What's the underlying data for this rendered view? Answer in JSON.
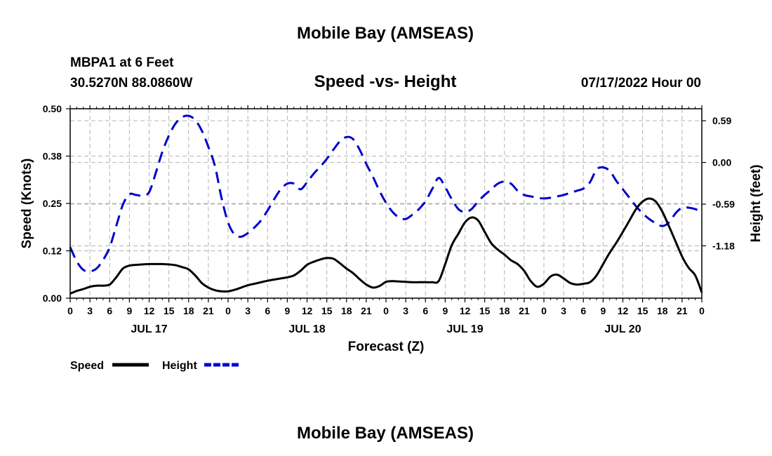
{
  "header": {
    "title": "Mobile Bay (AMSEAS)",
    "station": "MBPA1 at 6 Feet",
    "coords": "30.5270N  88.0860W",
    "datetime": "07/17/2022 Hour 00"
  },
  "footer": {
    "title": "Mobile Bay (AMSEAS)"
  },
  "chart_data": {
    "type": "line",
    "title": "Speed -vs- Height",
    "xlabel": "Forecast (Z)",
    "ylabel": "Speed (Knots)",
    "y2label": "Height (feet)",
    "x_unit": "hours since 07/17 00Z",
    "xlim": [
      0,
      96
    ],
    "ylim": [
      0,
      0.5
    ],
    "y2lim": [
      -1.92,
      0.76
    ],
    "grid": true,
    "x_tick_values": [
      0,
      3,
      6,
      9,
      12,
      15,
      18,
      21,
      24,
      27,
      30,
      33,
      36,
      39,
      42,
      45,
      48,
      51,
      54,
      57,
      60,
      63,
      66,
      69,
      72,
      75,
      78,
      81,
      84,
      87,
      90,
      93,
      96
    ],
    "x_tick_labels": [
      "0",
      "3",
      "6",
      "9",
      "12",
      "15",
      "18",
      "21",
      "0",
      "3",
      "6",
      "9",
      "12",
      "15",
      "18",
      "21",
      "0",
      "3",
      "6",
      "9",
      "12",
      "15",
      "18",
      "21",
      "0",
      "3",
      "6",
      "9",
      "12",
      "15",
      "18",
      "21",
      "0"
    ],
    "day_labels": [
      {
        "label": "JUL 17",
        "x": 12
      },
      {
        "label": "JUL 18",
        "x": 36
      },
      {
        "label": "JUL 19",
        "x": 60
      },
      {
        "label": "JUL 20",
        "x": 84
      }
    ],
    "y_ticks": [
      0.0,
      0.125,
      0.25,
      0.375,
      0.5
    ],
    "y_tick_labels": [
      "0.00",
      "0.12",
      "0.25",
      "0.38",
      "0.50"
    ],
    "y2_ticks": [
      -1.18,
      -0.59,
      0.0,
      0.59
    ],
    "y2_tick_labels": [
      "-1.18",
      "-0.59",
      "0.00",
      "0.59"
    ],
    "legend": {
      "position": "bottom-left"
    },
    "series": [
      {
        "name": "Speed",
        "axis": "left",
        "color": "#000000",
        "style": "solid",
        "x": [
          0,
          1,
          2,
          3,
          4,
          5,
          6,
          7,
          8,
          9,
          10,
          11,
          12,
          13,
          14,
          15,
          16,
          17,
          18,
          19,
          20,
          21,
          22,
          23,
          24,
          25,
          26,
          27,
          28,
          29,
          30,
          31,
          32,
          33,
          34,
          35,
          36,
          37,
          38,
          39,
          40,
          41,
          42,
          43,
          44,
          45,
          46,
          47,
          48,
          49,
          50,
          51,
          52,
          53,
          54,
          55,
          56,
          57,
          58,
          59,
          60,
          61,
          62,
          63,
          64,
          65,
          66,
          67,
          68,
          69,
          70,
          71,
          72,
          73,
          74,
          75,
          76,
          77,
          78,
          79,
          80,
          81,
          82,
          83,
          84,
          85,
          86,
          87,
          88,
          89,
          90,
          91,
          92,
          93,
          94,
          95,
          96
        ],
        "values": [
          0.012,
          0.019,
          0.024,
          0.03,
          0.033,
          0.033,
          0.036,
          0.055,
          0.078,
          0.086,
          0.088,
          0.089,
          0.09,
          0.09,
          0.09,
          0.089,
          0.087,
          0.082,
          0.076,
          0.06,
          0.04,
          0.028,
          0.021,
          0.018,
          0.018,
          0.022,
          0.028,
          0.034,
          0.038,
          0.042,
          0.046,
          0.049,
          0.052,
          0.055,
          0.06,
          0.072,
          0.088,
          0.096,
          0.102,
          0.106,
          0.104,
          0.092,
          0.078,
          0.066,
          0.05,
          0.036,
          0.028,
          0.032,
          0.043,
          0.045,
          0.044,
          0.043,
          0.042,
          0.042,
          0.042,
          0.042,
          0.045,
          0.09,
          0.14,
          0.17,
          0.2,
          0.213,
          0.205,
          0.175,
          0.145,
          0.128,
          0.115,
          0.1,
          0.09,
          0.072,
          0.045,
          0.03,
          0.038,
          0.057,
          0.062,
          0.052,
          0.04,
          0.036,
          0.038,
          0.042,
          0.06,
          0.09,
          0.12,
          0.146,
          0.175,
          0.205,
          0.235,
          0.255,
          0.263,
          0.255,
          0.228,
          0.19,
          0.15,
          0.11,
          0.08,
          0.06,
          0.015
        ]
      },
      {
        "name": "Height",
        "axis": "right",
        "color": "#0000cc",
        "style": "dashed",
        "x": [
          0,
          1,
          2,
          3,
          4,
          5,
          6,
          7,
          8,
          9,
          10,
          11,
          12,
          13,
          14,
          15,
          16,
          17,
          18,
          19,
          20,
          21,
          22,
          23,
          24,
          25,
          26,
          27,
          28,
          29,
          30,
          31,
          32,
          33,
          34,
          35,
          36,
          37,
          38,
          39,
          40,
          41,
          42,
          43,
          44,
          45,
          46,
          47,
          48,
          49,
          50,
          51,
          52,
          53,
          54,
          55,
          56,
          57,
          58,
          59,
          60,
          61,
          62,
          63,
          64,
          65,
          66,
          67,
          68,
          69,
          70,
          71,
          72,
          73,
          74,
          75,
          76,
          77,
          78,
          79,
          80,
          81,
          82,
          83,
          84,
          85,
          86,
          87,
          88,
          89,
          90,
          91,
          92,
          93,
          94,
          95,
          96
        ],
        "values": [
          -1.2,
          -1.4,
          -1.52,
          -1.54,
          -1.5,
          -1.38,
          -1.2,
          -0.9,
          -0.6,
          -0.45,
          -0.46,
          -0.47,
          -0.42,
          -0.15,
          0.15,
          0.38,
          0.55,
          0.64,
          0.66,
          0.6,
          0.45,
          0.22,
          -0.05,
          -0.5,
          -0.85,
          -1.02,
          -1.05,
          -1.0,
          -0.92,
          -0.82,
          -0.68,
          -0.52,
          -0.38,
          -0.3,
          -0.3,
          -0.38,
          -0.28,
          -0.16,
          -0.06,
          0.05,
          0.18,
          0.3,
          0.36,
          0.33,
          0.18,
          -0.02,
          -0.2,
          -0.4,
          -0.57,
          -0.7,
          -0.78,
          -0.8,
          -0.74,
          -0.66,
          -0.55,
          -0.38,
          -0.22,
          -0.35,
          -0.52,
          -0.66,
          -0.7,
          -0.66,
          -0.55,
          -0.46,
          -0.38,
          -0.3,
          -0.27,
          -0.3,
          -0.4,
          -0.46,
          -0.48,
          -0.5,
          -0.51,
          -0.5,
          -0.48,
          -0.46,
          -0.43,
          -0.4,
          -0.37,
          -0.28,
          -0.1,
          -0.07,
          -0.12,
          -0.26,
          -0.38,
          -0.5,
          -0.62,
          -0.72,
          -0.8,
          -0.86,
          -0.9,
          -0.85,
          -0.72,
          -0.64,
          -0.64,
          -0.66,
          -0.7
        ]
      }
    ]
  }
}
